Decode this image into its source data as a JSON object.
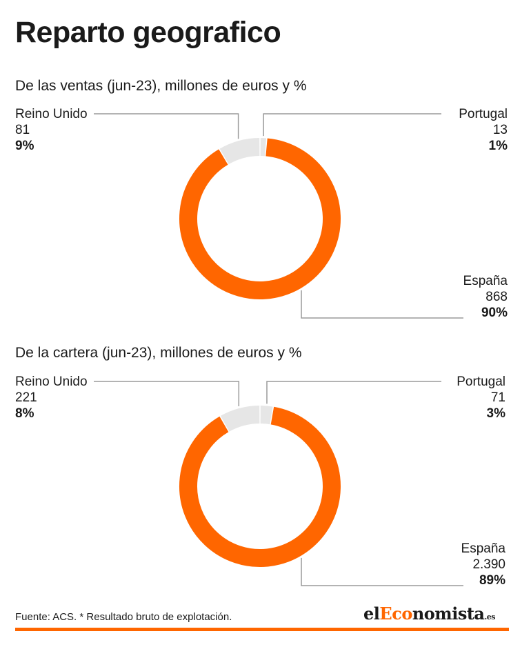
{
  "title": "Reparto geografico",
  "colors": {
    "espana": "#ff6600",
    "other": "#e6e6e6",
    "leader": "#9a9a9a",
    "accent": "#ff6600"
  },
  "chart_data": [
    {
      "type": "pie",
      "subtitle": "De las ventas (jun-23), millones de euros y %",
      "slices": [
        {
          "name": "España",
          "value": 868,
          "value_label": "868",
          "percent": 90,
          "percent_label": "90%"
        },
        {
          "name": "Reino Unido",
          "value": 81,
          "value_label": "81",
          "percent": 9,
          "percent_label": "9%"
        },
        {
          "name": "Portugal",
          "value": 13,
          "value_label": "13",
          "percent": 1,
          "percent_label": "1%"
        }
      ]
    },
    {
      "type": "pie",
      "subtitle": "De la cartera (jun-23), millones de euros y %",
      "slices": [
        {
          "name": "España",
          "value": 2390,
          "value_label": "2.390",
          "percent": 89,
          "percent_label": "89%"
        },
        {
          "name": "Reino Unido",
          "value": 221,
          "value_label": "221",
          "percent": 8,
          "percent_label": "8%"
        },
        {
          "name": "Portugal",
          "value": 71,
          "value_label": "71",
          "percent": 3,
          "percent_label": "3%"
        }
      ]
    }
  ],
  "footer": {
    "source": "Fuente: ACS. * Resultado bruto de explotación.",
    "brand_prefix": "el",
    "brand_accent": "Eco",
    "brand_suffix": "nomista",
    "brand_tld": ".es"
  }
}
